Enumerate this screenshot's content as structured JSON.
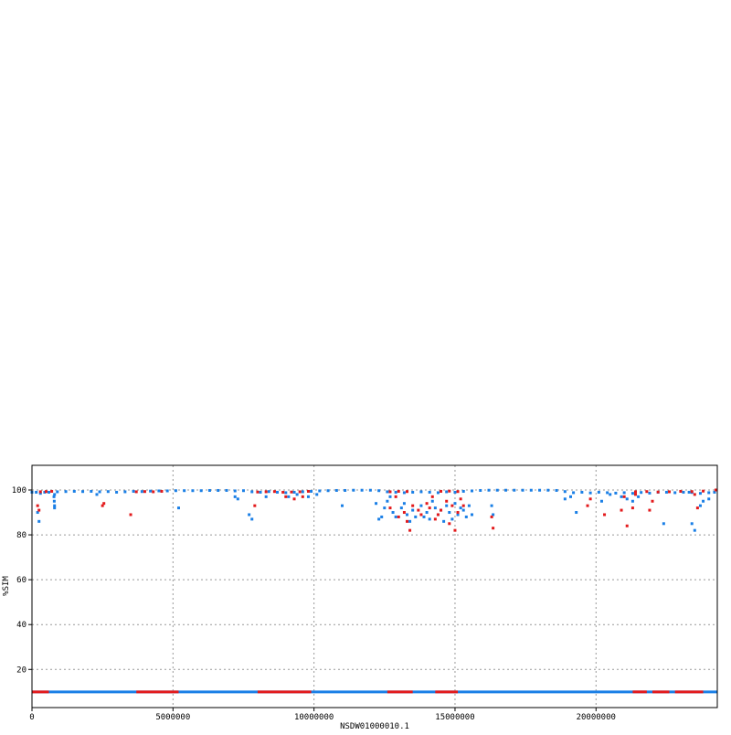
{
  "chart_data": {
    "type": "scatter",
    "title": "",
    "xlabel": "NSDW01000010.1",
    "ylabel": "%SIM",
    "xlim": [
      0,
      24300000
    ],
    "ylim": [
      3,
      111
    ],
    "x_ticks": [
      0,
      5000000,
      10000000,
      15000000,
      20000000
    ],
    "x_tick_labels": [
      "0",
      "5000000",
      "10000000",
      "15000000",
      "20000000"
    ],
    "y_ticks": [
      20,
      40,
      60,
      80,
      100
    ],
    "y_tick_labels": [
      "20",
      "40",
      "60",
      "80",
      "100"
    ],
    "grid": true,
    "legend": "none",
    "colors": {
      "series_a": "#1a7fe6",
      "series_b": "#e31a1c",
      "grid": "#999999",
      "frame": "#000000"
    },
    "baseline_y": 10,
    "baseline_red_segments": [
      [
        0,
        600000
      ],
      [
        3700000,
        5200000
      ],
      [
        8000000,
        9900000
      ],
      [
        12600000,
        13500000
      ],
      [
        14300000,
        15100000
      ],
      [
        21300000,
        21800000
      ],
      [
        22000000,
        22600000
      ],
      [
        22800000,
        23800000
      ]
    ],
    "series": [
      {
        "color": "#1a7fe6",
        "points": [
          [
            0,
            99
          ],
          [
            150000,
            99
          ],
          [
            300000,
            98.5
          ],
          [
            450000,
            99
          ],
          [
            600000,
            99
          ],
          [
            800000,
            98
          ],
          [
            900000,
            99.2
          ],
          [
            1200000,
            99.3
          ],
          [
            1500000,
            99.4
          ],
          [
            1800000,
            99.3
          ],
          [
            2100000,
            99.4
          ],
          [
            2400000,
            99.2
          ],
          [
            2700000,
            99.3
          ],
          [
            3000000,
            99
          ],
          [
            3300000,
            99.2
          ],
          [
            3600000,
            99.4
          ],
          [
            3900000,
            99.3
          ],
          [
            4200000,
            99.5
          ],
          [
            4500000,
            99.6
          ],
          [
            4800000,
            99.6
          ],
          [
            5100000,
            99.7
          ],
          [
            5400000,
            99.7
          ],
          [
            5700000,
            99.7
          ],
          [
            6000000,
            99.7
          ],
          [
            6300000,
            99.8
          ],
          [
            6600000,
            99.8
          ],
          [
            6900000,
            99.8
          ],
          [
            7200000,
            99.6
          ],
          [
            7500000,
            99.7
          ],
          [
            7800000,
            99.2
          ],
          [
            8100000,
            99
          ],
          [
            8400000,
            99.3
          ],
          [
            8700000,
            99
          ],
          [
            9000000,
            98.8
          ],
          [
            9300000,
            99
          ],
          [
            9600000,
            99.2
          ],
          [
            9900000,
            99.4
          ],
          [
            10200000,
            99.6
          ],
          [
            10500000,
            99.7
          ],
          [
            10800000,
            99.8
          ],
          [
            11100000,
            99.8
          ],
          [
            11400000,
            99.9
          ],
          [
            11700000,
            99.9
          ],
          [
            12000000,
            99.9
          ],
          [
            12300000,
            99.7
          ],
          [
            12600000,
            99.2
          ],
          [
            12900000,
            99
          ],
          [
            13200000,
            98.8
          ],
          [
            13500000,
            99
          ],
          [
            13800000,
            99.2
          ],
          [
            14100000,
            99
          ],
          [
            14400000,
            98.8
          ],
          [
            14700000,
            99.2
          ],
          [
            15000000,
            99
          ],
          [
            15300000,
            99.4
          ],
          [
            15600000,
            99.6
          ],
          [
            15900000,
            99.8
          ],
          [
            16200000,
            99.9
          ],
          [
            16500000,
            99.9
          ],
          [
            16800000,
            99.9
          ],
          [
            17100000,
            99.9
          ],
          [
            17400000,
            99.9
          ],
          [
            17700000,
            99.9
          ],
          [
            18000000,
            99.9
          ],
          [
            18300000,
            99.9
          ],
          [
            18600000,
            99.8
          ],
          [
            18900000,
            99.3
          ],
          [
            19200000,
            98.8
          ],
          [
            19500000,
            99
          ],
          [
            19800000,
            98.7
          ],
          [
            20100000,
            99
          ],
          [
            20400000,
            98.8
          ],
          [
            20700000,
            98.6
          ],
          [
            21000000,
            98.8
          ],
          [
            21300000,
            98.5
          ],
          [
            21600000,
            98.9
          ],
          [
            21900000,
            98.6
          ],
          [
            22200000,
            99
          ],
          [
            22500000,
            99
          ],
          [
            22800000,
            98.8
          ],
          [
            23100000,
            99
          ],
          [
            23400000,
            98.9
          ],
          [
            23700000,
            98.5
          ],
          [
            24000000,
            98.8
          ],
          [
            24200000,
            99
          ],
          [
            200000,
            90
          ],
          [
            250000,
            86
          ],
          [
            780000,
            97
          ],
          [
            790000,
            95
          ],
          [
            800000,
            93
          ],
          [
            800000,
            92
          ],
          [
            2300000,
            98
          ],
          [
            5200000,
            92
          ],
          [
            7200000,
            97
          ],
          [
            7300000,
            96
          ],
          [
            7700000,
            89
          ],
          [
            7800000,
            87
          ],
          [
            8300000,
            97
          ],
          [
            9100000,
            97
          ],
          [
            9400000,
            98
          ],
          [
            9800000,
            97
          ],
          [
            10100000,
            98
          ],
          [
            11000000,
            93
          ],
          [
            12200000,
            94
          ],
          [
            12300000,
            87
          ],
          [
            12400000,
            88
          ],
          [
            12500000,
            92
          ],
          [
            12600000,
            95
          ],
          [
            12700000,
            97
          ],
          [
            12800000,
            90
          ],
          [
            12900000,
            88
          ],
          [
            13100000,
            92
          ],
          [
            13200000,
            94
          ],
          [
            13300000,
            89
          ],
          [
            13400000,
            86
          ],
          [
            13500000,
            91
          ],
          [
            13600000,
            88
          ],
          [
            13800000,
            93
          ],
          [
            13900000,
            88
          ],
          [
            14000000,
            90
          ],
          [
            14100000,
            87
          ],
          [
            14200000,
            95
          ],
          [
            14300000,
            92
          ],
          [
            14400000,
            89
          ],
          [
            14500000,
            91
          ],
          [
            14600000,
            86
          ],
          [
            14700000,
            93
          ],
          [
            14800000,
            90
          ],
          [
            14900000,
            87
          ],
          [
            15000000,
            94
          ],
          [
            15100000,
            89
          ],
          [
            15200000,
            92
          ],
          [
            15300000,
            91
          ],
          [
            15400000,
            88
          ],
          [
            15500000,
            93
          ],
          [
            15600000,
            89
          ],
          [
            16300000,
            93
          ],
          [
            16350000,
            89
          ],
          [
            18900000,
            96
          ],
          [
            19100000,
            97
          ],
          [
            19300000,
            90
          ],
          [
            20200000,
            95
          ],
          [
            20500000,
            98
          ],
          [
            20900000,
            97
          ],
          [
            21100000,
            96
          ],
          [
            21300000,
            95
          ],
          [
            21500000,
            97
          ],
          [
            22400000,
            85
          ],
          [
            23300000,
            99
          ],
          [
            23400000,
            85
          ],
          [
            23500000,
            82
          ],
          [
            23700000,
            93
          ],
          [
            23800000,
            95
          ],
          [
            24000000,
            96
          ]
        ]
      },
      {
        "color": "#e31a1c",
        "points": [
          [
            300000,
            99.2
          ],
          [
            500000,
            99.3
          ],
          [
            700000,
            99.4
          ],
          [
            3700000,
            99.2
          ],
          [
            4000000,
            99.3
          ],
          [
            4300000,
            99.2
          ],
          [
            4600000,
            99.4
          ],
          [
            8000000,
            99.1
          ],
          [
            8300000,
            99.2
          ],
          [
            8600000,
            99.3
          ],
          [
            8900000,
            99
          ],
          [
            9200000,
            99.1
          ],
          [
            9500000,
            99.2
          ],
          [
            9800000,
            99.4
          ],
          [
            12700000,
            99.2
          ],
          [
            13000000,
            99.4
          ],
          [
            13300000,
            99.3
          ],
          [
            14500000,
            99.4
          ],
          [
            14800000,
            99.5
          ],
          [
            15100000,
            99.3
          ],
          [
            21400000,
            99.2
          ],
          [
            21800000,
            99.3
          ],
          [
            22200000,
            99.1
          ],
          [
            22600000,
            99.2
          ],
          [
            23000000,
            99.4
          ],
          [
            23400000,
            99.3
          ],
          [
            23800000,
            99.5
          ],
          [
            24250000,
            100
          ],
          [
            200000,
            93
          ],
          [
            250000,
            91
          ],
          [
            2500000,
            93
          ],
          [
            2550000,
            94
          ],
          [
            3500000,
            89
          ],
          [
            9000000,
            97
          ],
          [
            9300000,
            96
          ],
          [
            9600000,
            97
          ],
          [
            7900000,
            93
          ],
          [
            12700000,
            92
          ],
          [
            12900000,
            97
          ],
          [
            13000000,
            88
          ],
          [
            13200000,
            90
          ],
          [
            13300000,
            86
          ],
          [
            13400000,
            82
          ],
          [
            13500000,
            93
          ],
          [
            13700000,
            91
          ],
          [
            13800000,
            89
          ],
          [
            14000000,
            94
          ],
          [
            14100000,
            92
          ],
          [
            14200000,
            97
          ],
          [
            14300000,
            87
          ],
          [
            14400000,
            89
          ],
          [
            14500000,
            91
          ],
          [
            14700000,
            95
          ],
          [
            14800000,
            85
          ],
          [
            14900000,
            93
          ],
          [
            15000000,
            82
          ],
          [
            15100000,
            90
          ],
          [
            15200000,
            96
          ],
          [
            15300000,
            93
          ],
          [
            16300000,
            88
          ],
          [
            16350000,
            83
          ],
          [
            19700000,
            93
          ],
          [
            19800000,
            96
          ],
          [
            20300000,
            89
          ],
          [
            20900000,
            91
          ],
          [
            21000000,
            97
          ],
          [
            21100000,
            84
          ],
          [
            21300000,
            92
          ],
          [
            21400000,
            98
          ],
          [
            21900000,
            91
          ],
          [
            22000000,
            95
          ],
          [
            23500000,
            98
          ],
          [
            23600000,
            92
          ]
        ]
      }
    ]
  }
}
